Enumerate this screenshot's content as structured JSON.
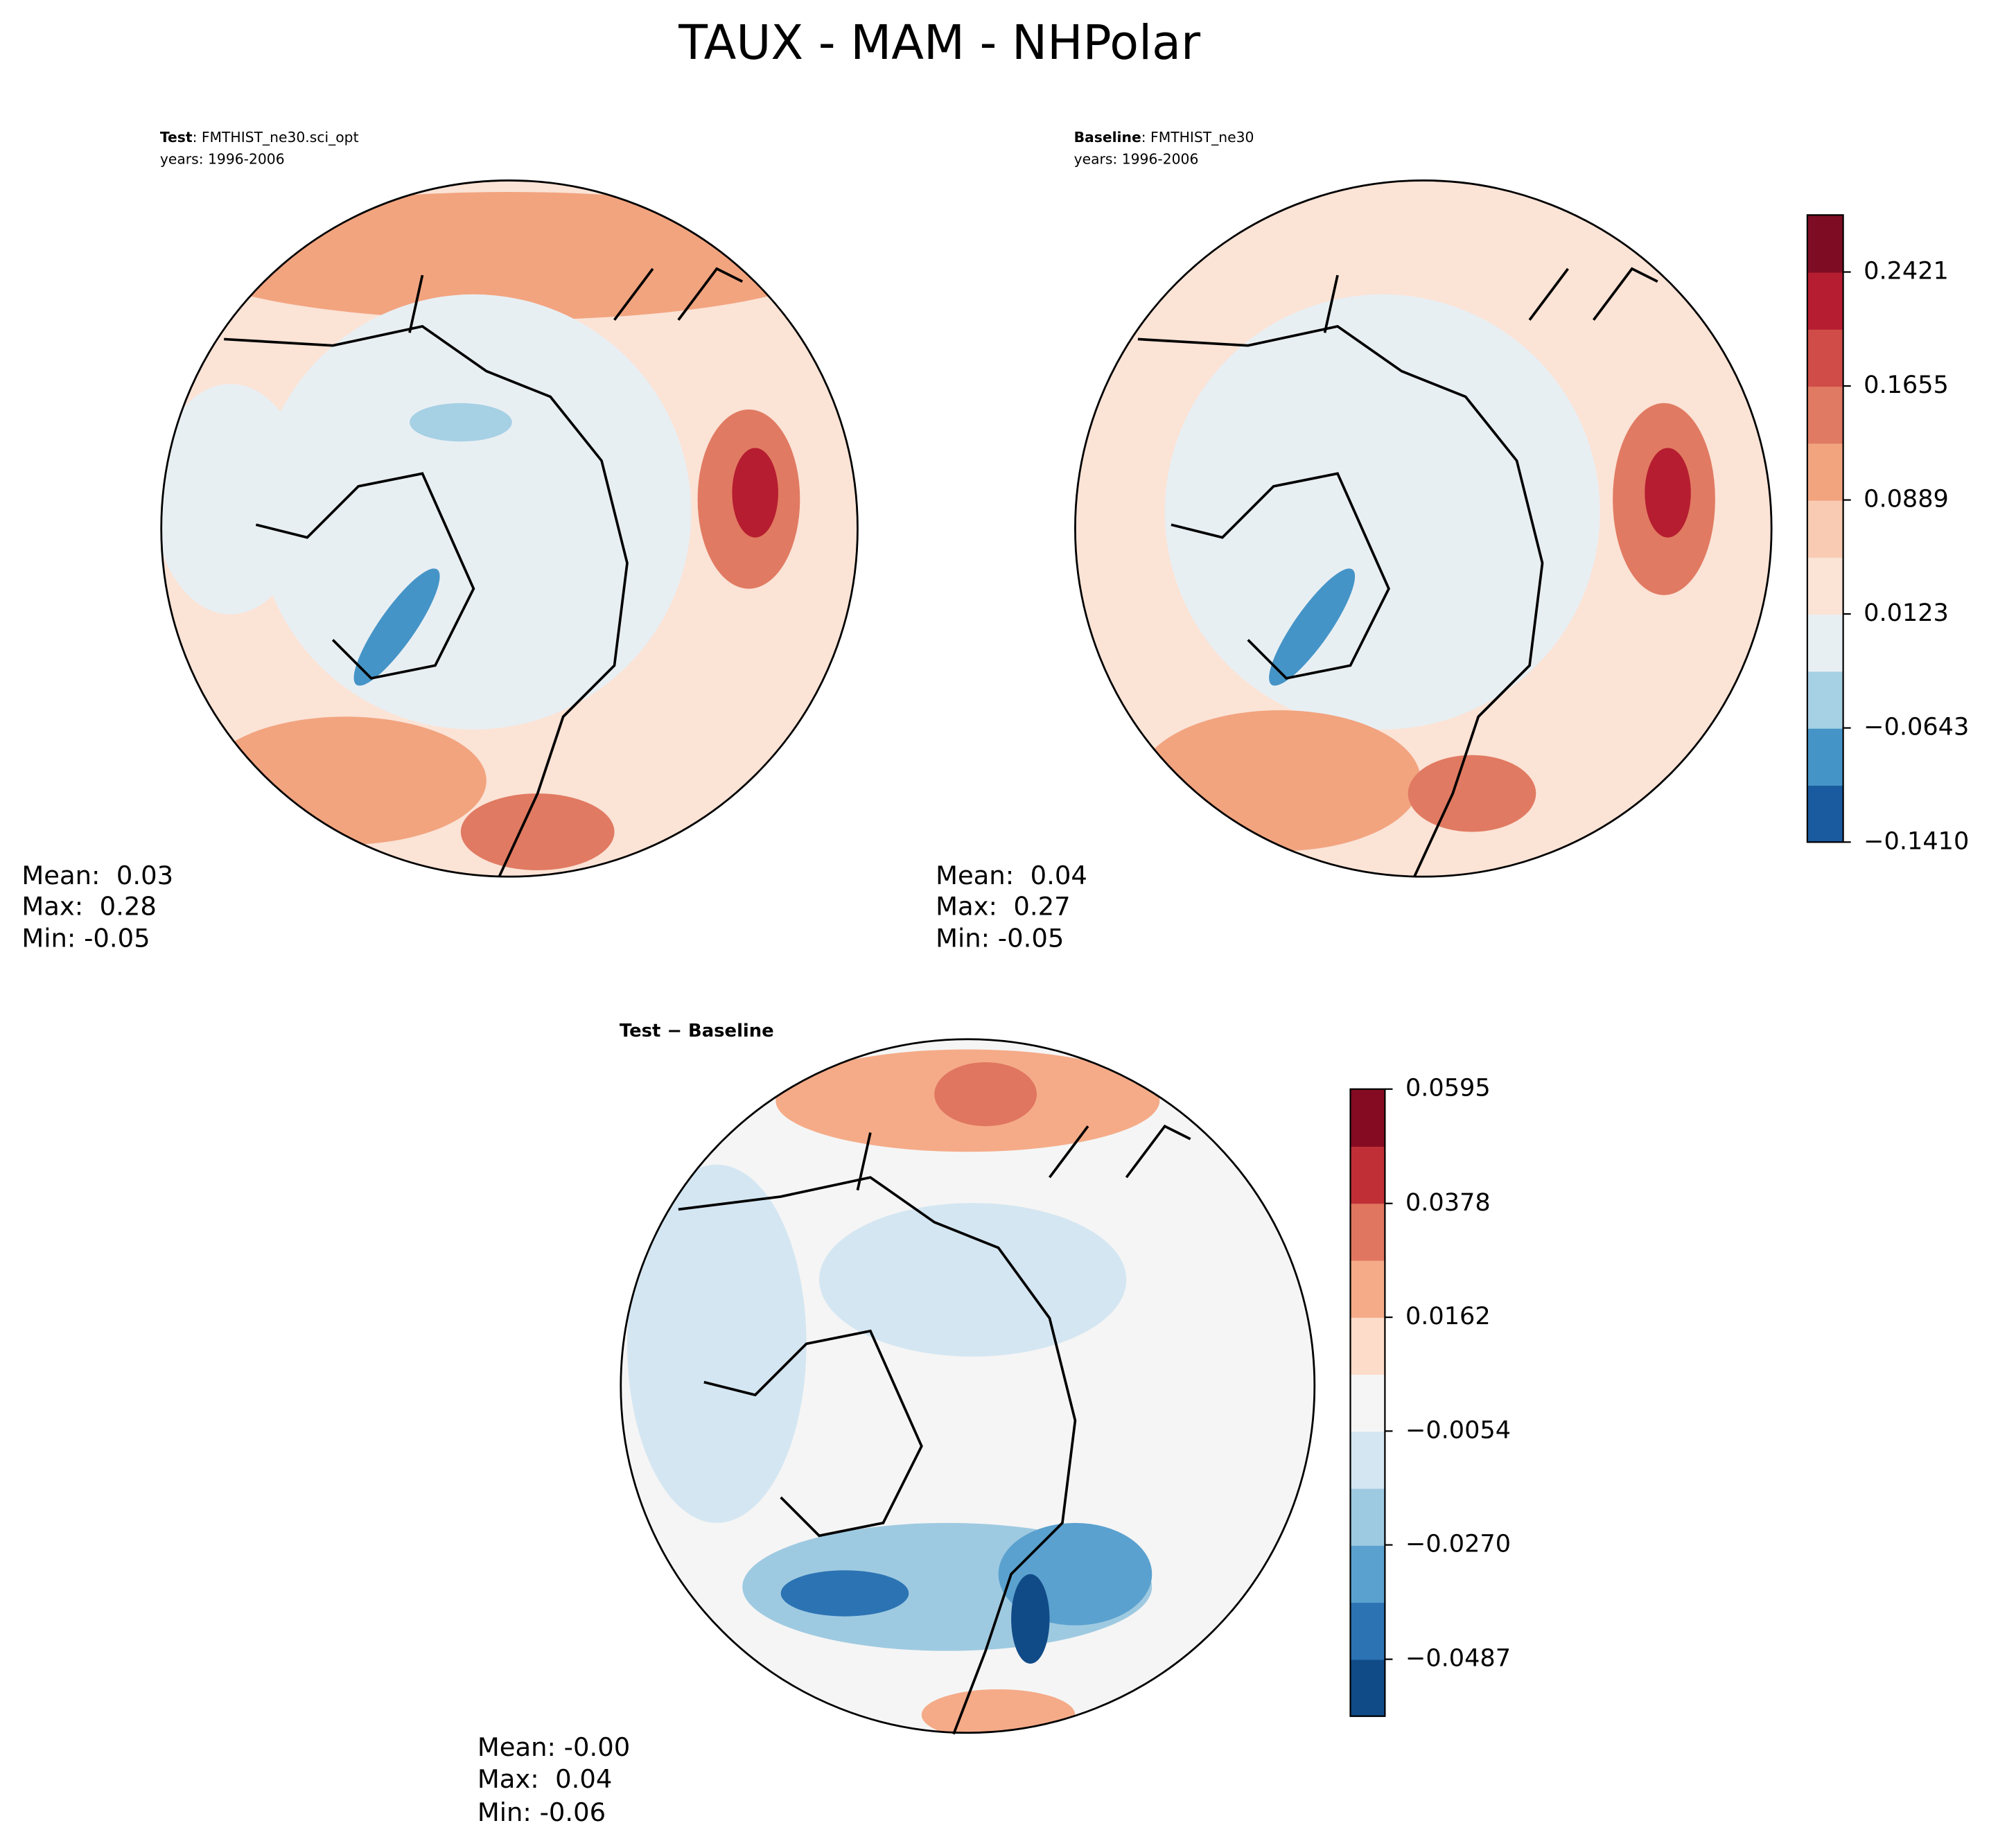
{
  "title": "TAUX - MAM - NHPolar",
  "panels": [
    {
      "label": "Test",
      "case": ": FMTHIST_ne30.sci_opt",
      "years": "years: 1996-2006",
      "stats": [
        "Mean:  0.03",
        "Max:  0.28",
        "Min: -0.05"
      ]
    },
    {
      "label": "Baseline",
      "case": ": FMTHIST_ne30",
      "years": "years: 1996-2006",
      "stats": [
        "Mean:  0.04",
        "Max:  0.27",
        "Min: -0.05"
      ]
    },
    {
      "label": "Test − Baseline",
      "stats": [
        "Mean: -0.00",
        "Max:  0.04",
        "Min: -0.06"
      ]
    }
  ],
  "colorbars": [
    {
      "lim": [
        -0.141,
        0.2804
      ],
      "colors": [
        "#1a5a9e",
        "#4594c7",
        "#a6d0e4",
        "#e8eff3",
        "#fbe3d6",
        "#f8cbb2",
        "#f2a47f",
        "#e17a62",
        "#cf4c48",
        "#b61d30",
        "#7e0d24"
      ],
      "ticks": [
        {
          "value": -0.141,
          "label": "−0.1410"
        },
        {
          "value": -0.0643,
          "label": "−0.0643"
        },
        0.0123,
        0.0889,
        0.1655,
        0.2421
      ]
    },
    {
      "lim": [
        -0.0595,
        0.0595
      ],
      "colors": [
        "#114b87",
        "#2c73b3",
        "#5aa1cf",
        "#9ecae1",
        "#d4e6f1",
        "#f5f5f5",
        "#fddcc9",
        "#f5ab88",
        "#e0765f",
        "#c02f36",
        "#850b22"
      ],
      "ticks": [
        {
          "value": -0.0487,
          "label": "−0.0487"
        },
        {
          "value": -0.027,
          "label": "−0.0270"
        },
        {
          "value": -0.0054,
          "label": "−0.0054"
        },
        0.0162,
        0.0378,
        0.0595
      ]
    }
  ]
}
